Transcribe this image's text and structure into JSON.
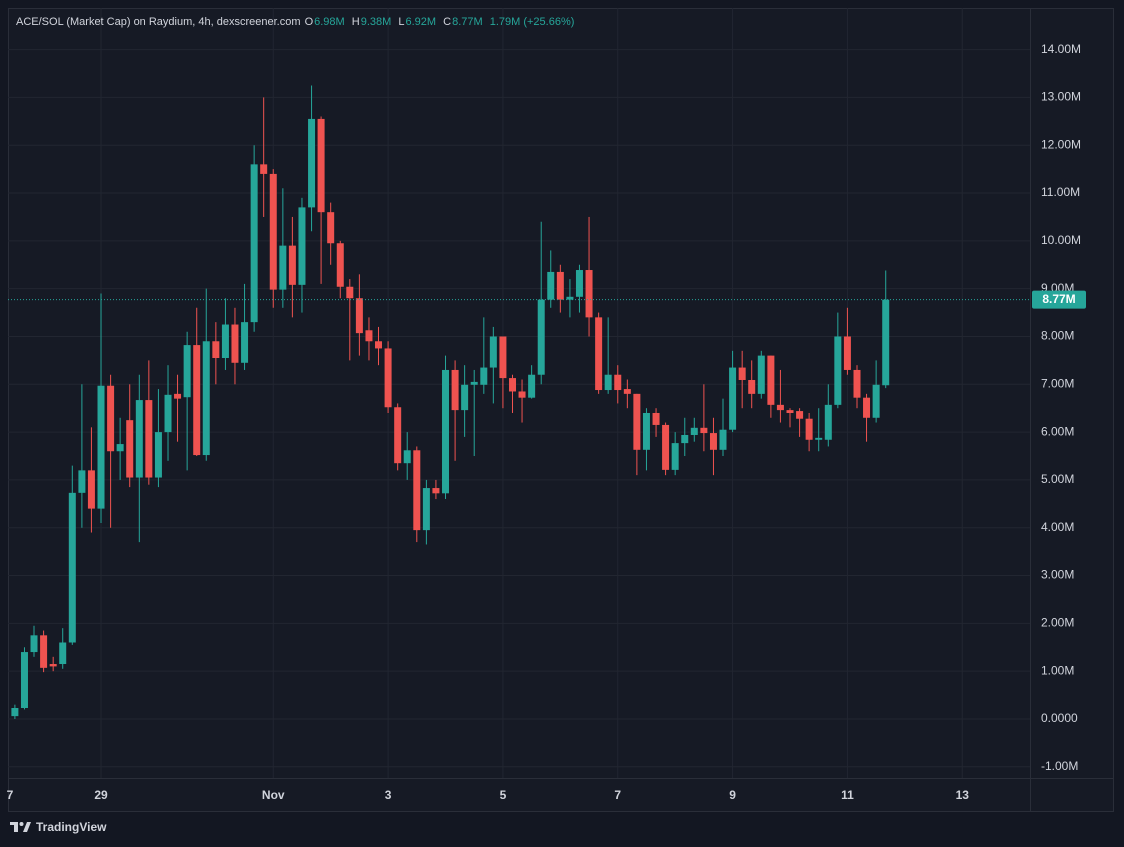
{
  "chart_data": {
    "type": "candlestick",
    "legend_text": {
      "title": "ACE/SOL (Market Cap) on Raydium, 4h, dexscreener.com",
      "open_label": "O",
      "open": "6.98M",
      "high_label": "H",
      "high": "9.38M",
      "low_label": "L",
      "low": "6.92M",
      "close_label": "C",
      "close": "8.77M",
      "change": "1.79M (+25.66%)"
    },
    "x": [
      27.5,
      27.667,
      27.833,
      28,
      28.167,
      28.333,
      28.5,
      28.667,
      28.833,
      29,
      29.167,
      29.333,
      29.5,
      29.667,
      29.833,
      30,
      30.167,
      30.333,
      30.5,
      30.667,
      30.833,
      31,
      31.167,
      31.333,
      31.5,
      31.667,
      31.833,
      32,
      32.167,
      32.333,
      32.5,
      32.667,
      32.833,
      33,
      33.167,
      33.333,
      33.5,
      33.667,
      33.833,
      34,
      34.167,
      34.333,
      34.5,
      34.667,
      34.833,
      35,
      35.167,
      35.333,
      35.5,
      35.667,
      35.833,
      36,
      36.167,
      36.333,
      36.5,
      36.667,
      36.833,
      37,
      37.167,
      37.333,
      37.5,
      37.667,
      37.833,
      38,
      38.167,
      38.333,
      38.5,
      38.667,
      38.833,
      39,
      39.167,
      39.333,
      39.5,
      39.667,
      39.833,
      40,
      40.167,
      40.333,
      40.5,
      40.667,
      40.833,
      41,
      41.167,
      41.333,
      41.5,
      41.667,
      41.833,
      42,
      42.167,
      42.333,
      42.5,
      42.667
    ],
    "open": [
      0.06,
      0.23,
      1.4,
      1.75,
      1.15,
      1.15,
      1.6,
      4.73,
      5.2,
      4.4,
      6.97,
      5.6,
      6.25,
      5.05,
      6.67,
      5.05,
      6.0,
      6.8,
      6.73,
      7.82,
      5.52,
      7.9,
      7.55,
      8.25,
      7.45,
      8.3,
      11.6,
      11.4,
      8.98,
      9.9,
      9.08,
      10.7,
      12.55,
      10.6,
      9.95,
      9.04,
      8.8,
      8.13,
      7.9,
      7.75,
      6.52,
      5.35,
      5.62,
      3.95,
      4.83,
      4.72,
      7.3,
      6.46,
      6.99,
      6.99,
      7.35,
      8.0,
      7.13,
      6.85,
      6.72,
      7.2,
      8.77,
      9.35,
      8.77,
      8.83,
      9.39,
      8.4,
      6.88,
      7.2,
      6.9,
      6.8,
      5.63,
      6.4,
      6.15,
      5.21,
      5.77,
      5.94,
      6.09,
      5.98,
      5.63,
      6.05,
      7.35,
      7.09,
      6.8,
      7.6,
      6.57,
      6.46,
      6.44,
      6.28,
      5.84,
      5.84,
      6.57,
      8.0,
      7.3,
      6.72,
      6.3,
      6.98
    ],
    "high": [
      0.3,
      1.5,
      1.95,
      1.85,
      1.3,
      1.9,
      5.3,
      7.0,
      6.1,
      8.9,
      7.2,
      6.3,
      7.0,
      7.2,
      7.5,
      6.9,
      7.4,
      7.2,
      8.1,
      8.6,
      9.0,
      8.3,
      8.8,
      8.6,
      9.1,
      12.0,
      13.0,
      11.5,
      11.1,
      10.5,
      10.9,
      13.25,
      12.6,
      10.8,
      10.0,
      9.2,
      9.3,
      8.4,
      8.2,
      7.9,
      6.6,
      6.0,
      5.7,
      5.0,
      5.0,
      7.6,
      7.5,
      7.4,
      7.3,
      8.4,
      8.2,
      8.0,
      7.2,
      7.1,
      7.4,
      10.4,
      9.8,
      9.5,
      9.2,
      9.5,
      10.5,
      8.5,
      8.4,
      7.4,
      7.1,
      6.8,
      6.5,
      6.5,
      6.2,
      6.0,
      6.3,
      6.3,
      7.0,
      6.3,
      6.7,
      7.7,
      7.7,
      7.5,
      7.7,
      7.6,
      7.3,
      6.5,
      6.5,
      6.4,
      6.5,
      7.0,
      8.5,
      8.6,
      7.4,
      6.8,
      7.5,
      9.38
    ],
    "low": [
      0.0,
      0.2,
      1.3,
      0.98,
      1.0,
      1.05,
      1.55,
      4.0,
      3.9,
      4.1,
      4.0,
      5.0,
      4.85,
      3.7,
      4.9,
      4.85,
      5.4,
      5.8,
      5.2,
      5.5,
      5.4,
      7.0,
      7.3,
      7.0,
      7.3,
      8.1,
      10.5,
      8.6,
      8.6,
      8.4,
      8.5,
      10.2,
      9.1,
      9.5,
      8.8,
      7.5,
      7.6,
      7.5,
      7.4,
      6.4,
      5.2,
      5.0,
      3.7,
      3.65,
      4.6,
      4.6,
      5.4,
      5.9,
      5.5,
      6.8,
      6.6,
      6.5,
      6.4,
      6.2,
      6.7,
      7.0,
      8.6,
      8.5,
      8.4,
      8.5,
      8.0,
      6.8,
      6.8,
      6.6,
      6.5,
      5.1,
      5.2,
      5.9,
      5.1,
      5.1,
      5.5,
      5.8,
      5.6,
      5.1,
      5.5,
      6.0,
      6.5,
      6.5,
      6.7,
      6.3,
      6.2,
      6.1,
      5.9,
      5.6,
      5.6,
      5.7,
      6.5,
      7.2,
      6.5,
      5.8,
      6.2,
      6.92
    ],
    "close": [
      0.23,
      1.4,
      1.75,
      1.07,
      1.1,
      1.6,
      4.73,
      5.2,
      4.4,
      6.97,
      5.6,
      5.75,
      5.05,
      6.67,
      5.05,
      6.0,
      6.78,
      6.7,
      7.82,
      5.52,
      7.9,
      7.55,
      8.25,
      7.45,
      8.3,
      11.6,
      11.4,
      8.98,
      9.9,
      9.08,
      10.7,
      12.55,
      10.6,
      9.95,
      9.04,
      8.8,
      8.07,
      7.9,
      7.75,
      6.52,
      5.35,
      5.62,
      3.95,
      4.83,
      4.72,
      7.3,
      6.46,
      6.99,
      7.05,
      7.35,
      8.0,
      7.13,
      6.85,
      6.72,
      7.2,
      8.77,
      9.35,
      8.77,
      8.83,
      9.39,
      8.4,
      6.88,
      7.2,
      6.88,
      6.8,
      5.63,
      6.4,
      6.15,
      5.21,
      5.77,
      5.94,
      6.09,
      5.98,
      5.63,
      6.05,
      7.35,
      7.09,
      6.8,
      7.6,
      6.57,
      6.46,
      6.4,
      6.28,
      5.84,
      5.88,
      6.57,
      8.0,
      7.3,
      6.72,
      6.3,
      6.99,
      8.77
    ],
    "up_color": "#26a69a",
    "down_color": "#ef5350",
    "xlim": [
      27.38,
      45.18
    ],
    "ylim": [
      -1.234,
      14.87
    ],
    "xticks": [
      {
        "value": 27,
        "label": "7"
      },
      29,
      {
        "value": 32,
        "label": "Nov"
      },
      {
        "value": 34,
        "label": "3"
      },
      {
        "value": 36,
        "label": "5"
      },
      {
        "value": 38,
        "label": "7"
      },
      {
        "value": 40,
        "label": "9"
      },
      {
        "value": 42,
        "label": "11"
      },
      {
        "value": 44,
        "label": "13"
      }
    ],
    "yticks": [
      {
        "value": -1,
        "label": "-1.00M"
      },
      {
        "value": 0,
        "label": "0.0000"
      },
      {
        "value": 1,
        "label": "1.00M"
      },
      {
        "value": 2,
        "label": "2.00M"
      },
      {
        "value": 3,
        "label": "3.00M"
      },
      {
        "value": 4,
        "label": "4.00M"
      },
      {
        "value": 5,
        "label": "5.00M"
      },
      {
        "value": 6,
        "label": "6.00M"
      },
      {
        "value": 7,
        "label": "7.00M"
      },
      {
        "value": 8,
        "label": "8.00M"
      },
      {
        "value": 9,
        "label": "9.00M"
      },
      {
        "value": 10,
        "label": "10.00M"
      },
      {
        "value": 11,
        "label": "11.00M"
      },
      {
        "value": 12,
        "label": "12.00M"
      },
      {
        "value": 13,
        "label": "13.00M"
      },
      {
        "value": 14,
        "label": "14.00M"
      }
    ],
    "grid": true,
    "last_price": {
      "value": 8.77,
      "label": "8.77M"
    }
  },
  "attribution": "TradingView"
}
